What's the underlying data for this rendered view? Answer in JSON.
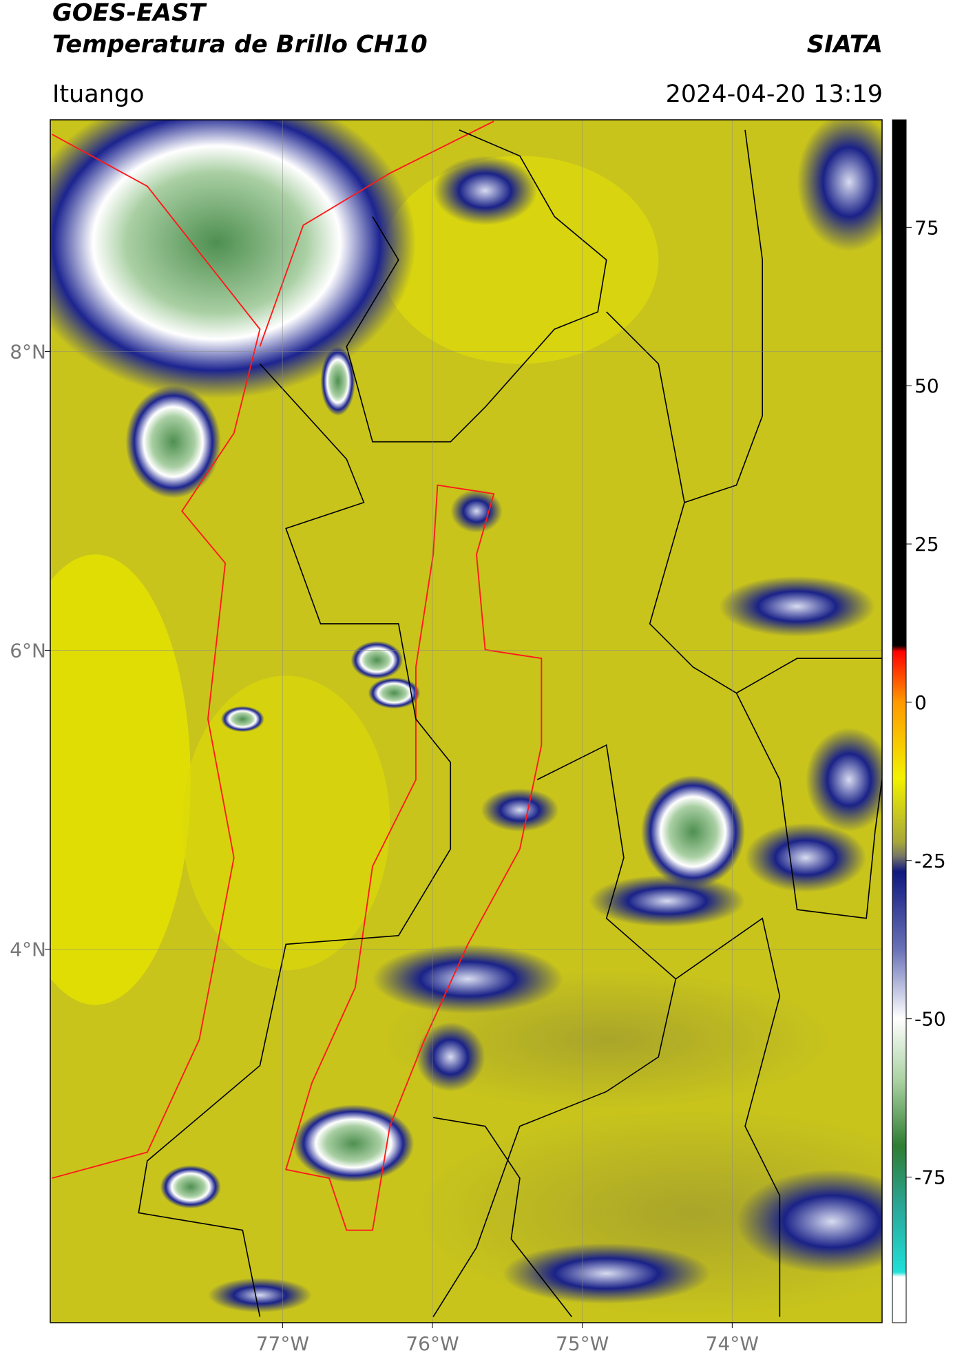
{
  "header": {
    "satellite": "GOES-EAST",
    "product": "Temperatura de Brillo CH10",
    "agency": "SIATA",
    "location": "Ituango",
    "datetime": "2024-04-20 13:19"
  },
  "map": {
    "lon_range": [
      -78.55,
      -73.0
    ],
    "lat_range": [
      1.5,
      9.55
    ],
    "lon_ticks": [
      {
        "value": -77,
        "label": "77°W"
      },
      {
        "value": -76,
        "label": "76°W"
      },
      {
        "value": -75,
        "label": "75°W"
      },
      {
        "value": -74,
        "label": "74°W"
      }
    ],
    "lat_ticks": [
      {
        "value": 8,
        "label": "8°N"
      },
      {
        "value": 6,
        "label": "6°N"
      },
      {
        "value": 4,
        "label": "4°N"
      }
    ]
  },
  "colorbar": {
    "range": [
      -98,
      92
    ],
    "ticks": [
      75,
      50,
      25,
      0,
      -25,
      -50,
      -75
    ]
  }
}
